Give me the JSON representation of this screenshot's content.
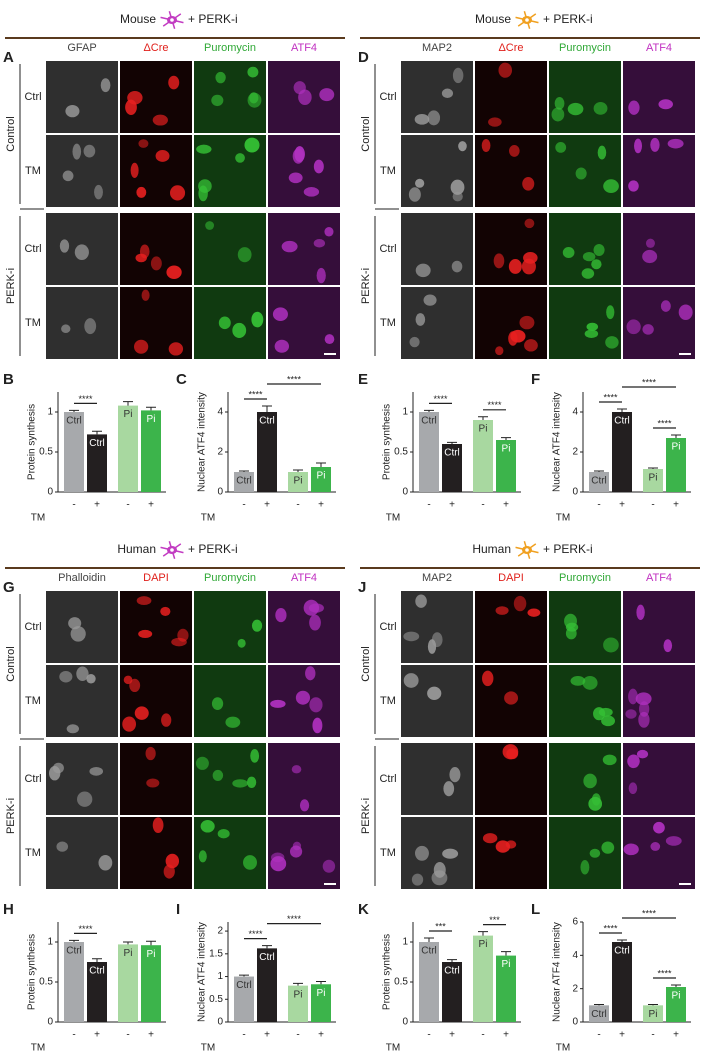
{
  "panels": [
    {
      "letter": "A",
      "species": "Mouse",
      "suffix": "+ PERK-i",
      "icon_color": "#c23cc2",
      "columns": [
        "GFAP",
        "ΔCre",
        "Puromycin",
        "ATF4"
      ],
      "column_colors": [
        "#444444",
        "#e0201b",
        "#2fa836",
        "#c030c0"
      ],
      "rows": [
        "Ctrl",
        "TM",
        "Ctrl",
        "TM"
      ],
      "groups": [
        "Control",
        "PERK-i"
      ]
    },
    {
      "letter": "D",
      "species": "Mouse",
      "suffix": "+ PERK-i",
      "icon_color": "#f0a020",
      "columns": [
        "MAP2",
        "ΔCre",
        "Puromycin",
        "ATF4"
      ],
      "column_colors": [
        "#444444",
        "#e0201b",
        "#2fa836",
        "#c030c0"
      ],
      "rows": [
        "Ctrl",
        "TM",
        "Ctrl",
        "TM"
      ],
      "groups": [
        "Control",
        "PERK-i"
      ]
    },
    {
      "letter": "G",
      "species": "Human",
      "suffix": "+ PERK-i",
      "icon_color": "#c23cc2",
      "columns": [
        "Phalloidin",
        "DAPI",
        "Puromycin",
        "ATF4"
      ],
      "column_colors": [
        "#444444",
        "#e0201b",
        "#2fa836",
        "#c030c0"
      ],
      "rows": [
        "Ctrl",
        "TM",
        "Ctrl",
        "TM"
      ],
      "groups": [
        "Control",
        "PERK-i"
      ]
    },
    {
      "letter": "J",
      "species": "Human",
      "suffix": "+ PERK-i",
      "icon_color": "#f0a020",
      "columns": [
        "MAP2",
        "DAPI",
        "Puromycin",
        "ATF4"
      ],
      "column_colors": [
        "#444444",
        "#e0201b",
        "#2fa836",
        "#c030c0"
      ],
      "rows": [
        "Ctrl",
        "TM",
        "Ctrl",
        "TM"
      ],
      "groups": [
        "Control",
        "PERK-i"
      ]
    }
  ],
  "chart_data": [
    {
      "type": "bar",
      "letter": "B",
      "ylabel": "Protein synthesis",
      "xlabel": "TM",
      "categories": [
        "-",
        "+",
        "-",
        "+"
      ],
      "bar_labels": [
        "Ctrl",
        "Ctrl",
        "Pi",
        "Pi"
      ],
      "values": [
        1.0,
        0.72,
        1.08,
        1.02
      ],
      "errors": [
        0.02,
        0.04,
        0.05,
        0.04
      ],
      "colors": [
        "#a7a9ac",
        "#231f20",
        "#a8d8a0",
        "#3cb44b"
      ],
      "ylim": [
        0,
        1.25
      ],
      "yticks": [
        0,
        0.5,
        1
      ],
      "annotations": [
        {
          "from": 0,
          "to": 1,
          "text": "****"
        }
      ]
    },
    {
      "type": "bar",
      "letter": "C",
      "ylabel": "Nuclear ATF4 intensity",
      "xlabel": "TM",
      "categories": [
        "-",
        "+",
        "-",
        "+"
      ],
      "bar_labels": [
        "Ctrl",
        "Ctrl",
        "Pi",
        "Pi"
      ],
      "values": [
        1.0,
        4.0,
        1.0,
        1.25
      ],
      "errors": [
        0.05,
        0.3,
        0.1,
        0.2
      ],
      "colors": [
        "#a7a9ac",
        "#231f20",
        "#a8d8a0",
        "#3cb44b"
      ],
      "ylim": [
        0,
        5
      ],
      "yticks": [
        0,
        2,
        4
      ],
      "annotations": [
        {
          "from": 0,
          "to": 1,
          "text": "****"
        },
        {
          "from": 1,
          "to": 3,
          "text": "****"
        }
      ]
    },
    {
      "type": "bar",
      "letter": "E",
      "ylabel": "Protein synthesis",
      "xlabel": "TM",
      "categories": [
        "-",
        "+",
        "-",
        "+"
      ],
      "bar_labels": [
        "Ctrl",
        "Ctrl",
        "Pi",
        "Pi"
      ],
      "values": [
        1.0,
        0.6,
        0.9,
        0.65
      ],
      "errors": [
        0.02,
        0.02,
        0.04,
        0.03
      ],
      "colors": [
        "#a7a9ac",
        "#231f20",
        "#a8d8a0",
        "#3cb44b"
      ],
      "ylim": [
        0,
        1.25
      ],
      "yticks": [
        0,
        0.5,
        1
      ],
      "annotations": [
        {
          "from": 0,
          "to": 1,
          "text": "****"
        },
        {
          "from": 2,
          "to": 3,
          "text": "****"
        }
      ]
    },
    {
      "type": "bar",
      "letter": "F",
      "ylabel": "Nuclear ATF4 intensity",
      "xlabel": "TM",
      "categories": [
        "-",
        "+",
        "-",
        "+"
      ],
      "bar_labels": [
        "Ctrl",
        "Ctrl",
        "Pi",
        "Pi"
      ],
      "values": [
        1.0,
        4.0,
        1.15,
        2.7
      ],
      "errors": [
        0.05,
        0.15,
        0.05,
        0.15
      ],
      "colors": [
        "#a7a9ac",
        "#231f20",
        "#a8d8a0",
        "#3cb44b"
      ],
      "ylim": [
        0,
        5
      ],
      "yticks": [
        0,
        2,
        4
      ],
      "annotations": [
        {
          "from": 0,
          "to": 1,
          "text": "****"
        },
        {
          "from": 2,
          "to": 3,
          "text": "****"
        },
        {
          "from": 1,
          "to": 3,
          "text": "****"
        }
      ]
    },
    {
      "type": "bar",
      "letter": "H",
      "ylabel": "Protein synthesis",
      "xlabel": "TM",
      "categories": [
        "-",
        "+",
        "-",
        "+"
      ],
      "bar_labels": [
        "Ctrl",
        "Ctrl",
        "Pi",
        "Pi"
      ],
      "values": [
        1.0,
        0.75,
        0.97,
        0.96
      ],
      "errors": [
        0.02,
        0.04,
        0.03,
        0.05
      ],
      "colors": [
        "#a7a9ac",
        "#231f20",
        "#a8d8a0",
        "#3cb44b"
      ],
      "ylim": [
        0,
        1.25
      ],
      "yticks": [
        0,
        0.5,
        1
      ],
      "annotations": [
        {
          "from": 0,
          "to": 1,
          "text": "****"
        }
      ]
    },
    {
      "type": "bar",
      "letter": "I",
      "ylabel": "Nuclear ATF4 intensity",
      "xlabel": "TM",
      "categories": [
        "-",
        "+",
        "-",
        "+"
      ],
      "bar_labels": [
        "Ctrl",
        "Ctrl",
        "Pi",
        "Pi"
      ],
      "values": [
        1.0,
        1.62,
        0.8,
        0.83
      ],
      "errors": [
        0.03,
        0.06,
        0.05,
        0.06
      ],
      "colors": [
        "#a7a9ac",
        "#231f20",
        "#a8d8a0",
        "#3cb44b"
      ],
      "ylim": [
        0,
        2.2
      ],
      "yticks": [
        0,
        0.5,
        1,
        1.5,
        2
      ],
      "annotations": [
        {
          "from": 0,
          "to": 1,
          "text": "****"
        },
        {
          "from": 1,
          "to": 3,
          "text": "****"
        }
      ]
    },
    {
      "type": "bar",
      "letter": "K",
      "ylabel": "Protein synthesis",
      "xlabel": "TM",
      "categories": [
        "-",
        "+",
        "-",
        "+"
      ],
      "bar_labels": [
        "Ctrl",
        "Ctrl",
        "Pi",
        "Pi"
      ],
      "values": [
        1.0,
        0.75,
        1.08,
        0.83
      ],
      "errors": [
        0.05,
        0.03,
        0.05,
        0.05
      ],
      "colors": [
        "#a7a9ac",
        "#231f20",
        "#a8d8a0",
        "#3cb44b"
      ],
      "ylim": [
        0,
        1.25
      ],
      "yticks": [
        0,
        0.5,
        1
      ],
      "annotations": [
        {
          "from": 0,
          "to": 1,
          "text": "***"
        },
        {
          "from": 2,
          "to": 3,
          "text": "***"
        }
      ]
    },
    {
      "type": "bar",
      "letter": "L",
      "ylabel": "Nuclear ATF4 intensity",
      "xlabel": "TM",
      "categories": [
        "-",
        "+",
        "-",
        "+"
      ],
      "bar_labels": [
        "Ctrl",
        "Ctrl",
        "Pi",
        "Pi"
      ],
      "values": [
        1.0,
        4.8,
        1.0,
        2.1
      ],
      "errors": [
        0.05,
        0.12,
        0.05,
        0.12
      ],
      "colors": [
        "#a7a9ac",
        "#231f20",
        "#a8d8a0",
        "#3cb44b"
      ],
      "ylim": [
        0,
        6
      ],
      "yticks": [
        0,
        2,
        4,
        6
      ],
      "annotations": [
        {
          "from": 0,
          "to": 1,
          "text": "****"
        },
        {
          "from": 2,
          "to": 3,
          "text": "****"
        },
        {
          "from": 1,
          "to": 3,
          "text": "****"
        }
      ]
    }
  ]
}
